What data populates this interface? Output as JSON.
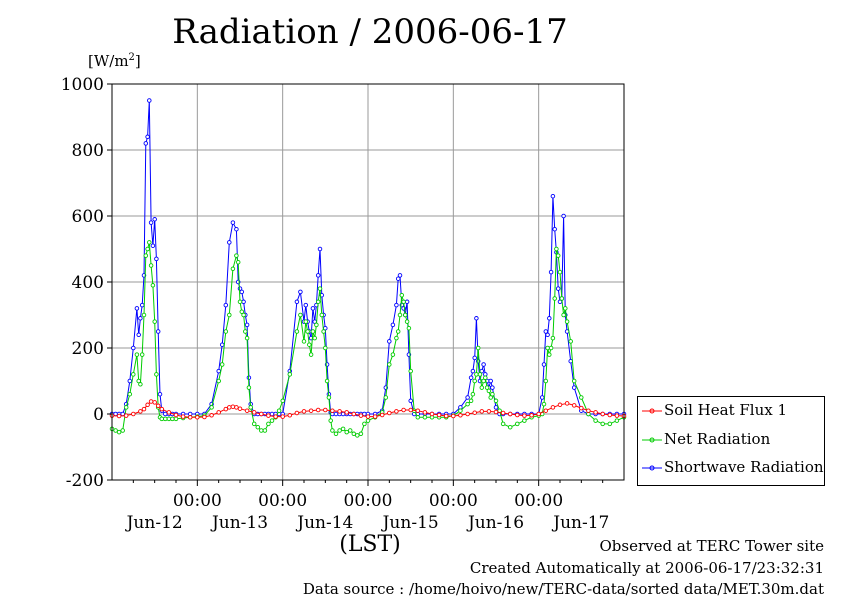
{
  "title": "Radiation / 2006-06-17",
  "unit": {
    "base": "[W/m",
    "exp": "2",
    "close": "]"
  },
  "xlabel": "(LST)",
  "footer": {
    "line1": "Observed at TERC Tower site",
    "line2": "Created Automatically at 2006-06-17/23:32:31",
    "line3": "Data source : /home/hoivo/new/TERC-data/sorted  data/MET.30m.dat"
  },
  "chart_data": {
    "type": "line",
    "title": "Radiation / 2006-06-17",
    "ylabel": "[W/m2]",
    "xlabel": "(LST)",
    "ylim": [
      -200,
      1000
    ],
    "yticks": [
      -200,
      0,
      200,
      400,
      600,
      800,
      1000
    ],
    "xlim": [
      0,
      144
    ],
    "time_ticks": [
      24,
      48,
      72,
      96,
      120
    ],
    "time_tick_label": "00:00",
    "day_labels": [
      "Jun-12",
      "Jun-13",
      "Jun-14",
      "Jun-15",
      "Jun-16",
      "Jun-17"
    ],
    "grid": true,
    "legend_position": "right",
    "series": [
      {
        "name": "Soil Heat Flux 1",
        "color": "#ff0000",
        "x": [
          0,
          2,
          4,
          6,
          8,
          9,
          10,
          11,
          12,
          13,
          14,
          16,
          18,
          20,
          22,
          24,
          26,
          28,
          30,
          32,
          33,
          34,
          35,
          36,
          38,
          40,
          42,
          44,
          46,
          48,
          50,
          52,
          54,
          56,
          58,
          60,
          62,
          64,
          66,
          68,
          70,
          72,
          74,
          76,
          78,
          80,
          82,
          84,
          86,
          88,
          90,
          92,
          94,
          96,
          98,
          100,
          102,
          104,
          106,
          108,
          110,
          112,
          114,
          116,
          118,
          120,
          122,
          124,
          126,
          128,
          130,
          132,
          134,
          136,
          138,
          140,
          142,
          144
        ],
        "y": [
          -5,
          -6,
          -5,
          0,
          8,
          15,
          28,
          38,
          35,
          25,
          15,
          5,
          -3,
          -8,
          -10,
          -10,
          -9,
          -4,
          5,
          15,
          20,
          22,
          20,
          16,
          10,
          5,
          0,
          -5,
          -8,
          -8,
          -4,
          3,
          8,
          10,
          12,
          12,
          10,
          8,
          5,
          0,
          -5,
          -8,
          -8,
          -3,
          3,
          8,
          12,
          12,
          10,
          5,
          0,
          -3,
          -6,
          -6,
          -4,
          0,
          4,
          8,
          8,
          6,
          3,
          0,
          -3,
          -5,
          -4,
          0,
          10,
          20,
          28,
          32,
          26,
          18,
          10,
          5,
          0,
          -3,
          -5,
          -6
        ]
      },
      {
        "name": "Net Radiation",
        "color": "#00cc00",
        "x": [
          0,
          1,
          2,
          3,
          4,
          5,
          6,
          7,
          7.5,
          8,
          8.5,
          9,
          9.5,
          10,
          10.5,
          11,
          11.5,
          12,
          12.5,
          13,
          13.5,
          14,
          15,
          16,
          17,
          18,
          20,
          22,
          24,
          26,
          28,
          30,
          31,
          32,
          33,
          34,
          35,
          35.5,
          36,
          36.5,
          37,
          37.5,
          38,
          38.5,
          39,
          40,
          41,
          42,
          43,
          44,
          45,
          46,
          47,
          48,
          50,
          52,
          53,
          54,
          54.5,
          55,
          55.5,
          56,
          56.5,
          57,
          57.5,
          58,
          58.5,
          59,
          59.5,
          60,
          60.5,
          61,
          61.5,
          62,
          63,
          64,
          65,
          66,
          67,
          68,
          69,
          70,
          71,
          72,
          74,
          76,
          77,
          78,
          79,
          80,
          80.5,
          81,
          81.5,
          82,
          82.5,
          83,
          83.5,
          84,
          85,
          86,
          88,
          90,
          92,
          94,
          96,
          98,
          100,
          101,
          101.5,
          102,
          102.5,
          103,
          103.5,
          104,
          104.5,
          105,
          105.5,
          106,
          106.5,
          107,
          108,
          109,
          110,
          112,
          114,
          116,
          118,
          120,
          121,
          121.5,
          122,
          122.5,
          123,
          123.5,
          124,
          124.5,
          125,
          125.5,
          126,
          126.5,
          127,
          127.5,
          128,
          129,
          130,
          132,
          134,
          136,
          138,
          140,
          142,
          144
        ],
        "y": [
          -45,
          -50,
          -55,
          -50,
          20,
          60,
          120,
          180,
          100,
          90,
          180,
          300,
          480,
          500,
          520,
          450,
          390,
          280,
          120,
          20,
          -10,
          -15,
          -15,
          -15,
          -15,
          -15,
          -12,
          -10,
          -8,
          -5,
          20,
          100,
          150,
          250,
          300,
          440,
          480,
          460,
          340,
          310,
          300,
          250,
          230,
          80,
          20,
          -30,
          -40,
          -50,
          -50,
          -30,
          -20,
          -10,
          10,
          40,
          120,
          250,
          300,
          220,
          280,
          250,
          210,
          180,
          250,
          230,
          270,
          340,
          380,
          300,
          250,
          200,
          100,
          50,
          -20,
          -50,
          -60,
          -50,
          -45,
          -55,
          -50,
          -60,
          -65,
          -60,
          -30,
          -20,
          -10,
          5,
          50,
          150,
          180,
          230,
          250,
          300,
          360,
          340,
          300,
          280,
          260,
          130,
          10,
          -10,
          -10,
          -10,
          -10,
          -10,
          -5,
          10,
          30,
          40,
          60,
          100,
          120,
          200,
          120,
          80,
          100,
          110,
          80,
          70,
          50,
          60,
          40,
          10,
          -30,
          -40,
          -30,
          -20,
          -10,
          -5,
          0,
          30,
          100,
          200,
          180,
          200,
          230,
          350,
          500,
          480,
          430,
          350,
          300,
          320,
          280,
          220,
          100,
          50,
          0,
          -20,
          -30,
          -30,
          -20,
          -10
        ]
      },
      {
        "name": "Shortwave Radiation",
        "color": "#0000ff",
        "x": [
          0,
          1,
          2,
          3,
          4,
          5,
          6,
          7,
          7.5,
          8,
          8.5,
          9,
          9.5,
          10,
          10.5,
          11,
          11.5,
          12,
          12.5,
          13,
          13.5,
          14,
          15,
          16,
          17,
          18,
          20,
          22,
          24,
          26,
          28,
          30,
          31,
          32,
          33,
          34,
          35,
          35.5,
          36,
          36.5,
          37,
          37.5,
          38,
          38.5,
          39,
          40,
          41,
          42,
          43,
          44,
          45,
          46,
          47,
          48,
          50,
          52,
          53,
          54,
          54.5,
          55,
          55.5,
          56,
          56.5,
          57,
          57.5,
          58,
          58.5,
          59,
          59.5,
          60,
          60.5,
          61,
          61.5,
          62,
          63,
          64,
          65,
          66,
          67,
          68,
          69,
          70,
          71,
          72,
          74,
          76,
          77,
          78,
          79,
          80,
          80.5,
          81,
          81.5,
          82,
          82.5,
          83,
          83.5,
          84,
          85,
          86,
          88,
          90,
          92,
          94,
          96,
          98,
          100,
          101,
          101.5,
          102,
          102.5,
          103,
          103.5,
          104,
          104.5,
          105,
          105.5,
          106,
          106.5,
          107,
          108,
          109,
          110,
          112,
          114,
          116,
          118,
          120,
          121,
          121.5,
          122,
          122.5,
          123,
          123.5,
          124,
          124.5,
          125,
          125.5,
          126,
          126.5,
          127,
          127.5,
          128,
          129,
          130,
          132,
          134,
          136,
          138,
          140,
          142,
          144
        ],
        "y": [
          0,
          0,
          0,
          0,
          30,
          100,
          200,
          320,
          240,
          290,
          330,
          420,
          820,
          840,
          950,
          580,
          510,
          590,
          470,
          250,
          60,
          10,
          0,
          0,
          0,
          0,
          0,
          0,
          0,
          0,
          30,
          130,
          210,
          330,
          520,
          580,
          560,
          400,
          380,
          370,
          340,
          300,
          270,
          110,
          30,
          0,
          0,
          0,
          0,
          0,
          0,
          0,
          0,
          0,
          130,
          340,
          370,
          280,
          330,
          280,
          250,
          230,
          320,
          280,
          330,
          420,
          500,
          360,
          300,
          260,
          150,
          60,
          5,
          0,
          0,
          0,
          0,
          0,
          0,
          0,
          0,
          0,
          0,
          0,
          0,
          10,
          80,
          220,
          270,
          330,
          410,
          420,
          330,
          320,
          300,
          340,
          180,
          40,
          0,
          0,
          0,
          0,
          0,
          0,
          0,
          20,
          50,
          110,
          130,
          170,
          290,
          160,
          100,
          130,
          150,
          120,
          100,
          80,
          100,
          80,
          20,
          0,
          0,
          0,
          0,
          0,
          0,
          0,
          50,
          150,
          250,
          240,
          290,
          430,
          660,
          560,
          490,
          380,
          340,
          350,
          600,
          300,
          250,
          160,
          80,
          10,
          0,
          0,
          0,
          0,
          0,
          0
        ]
      }
    ]
  }
}
